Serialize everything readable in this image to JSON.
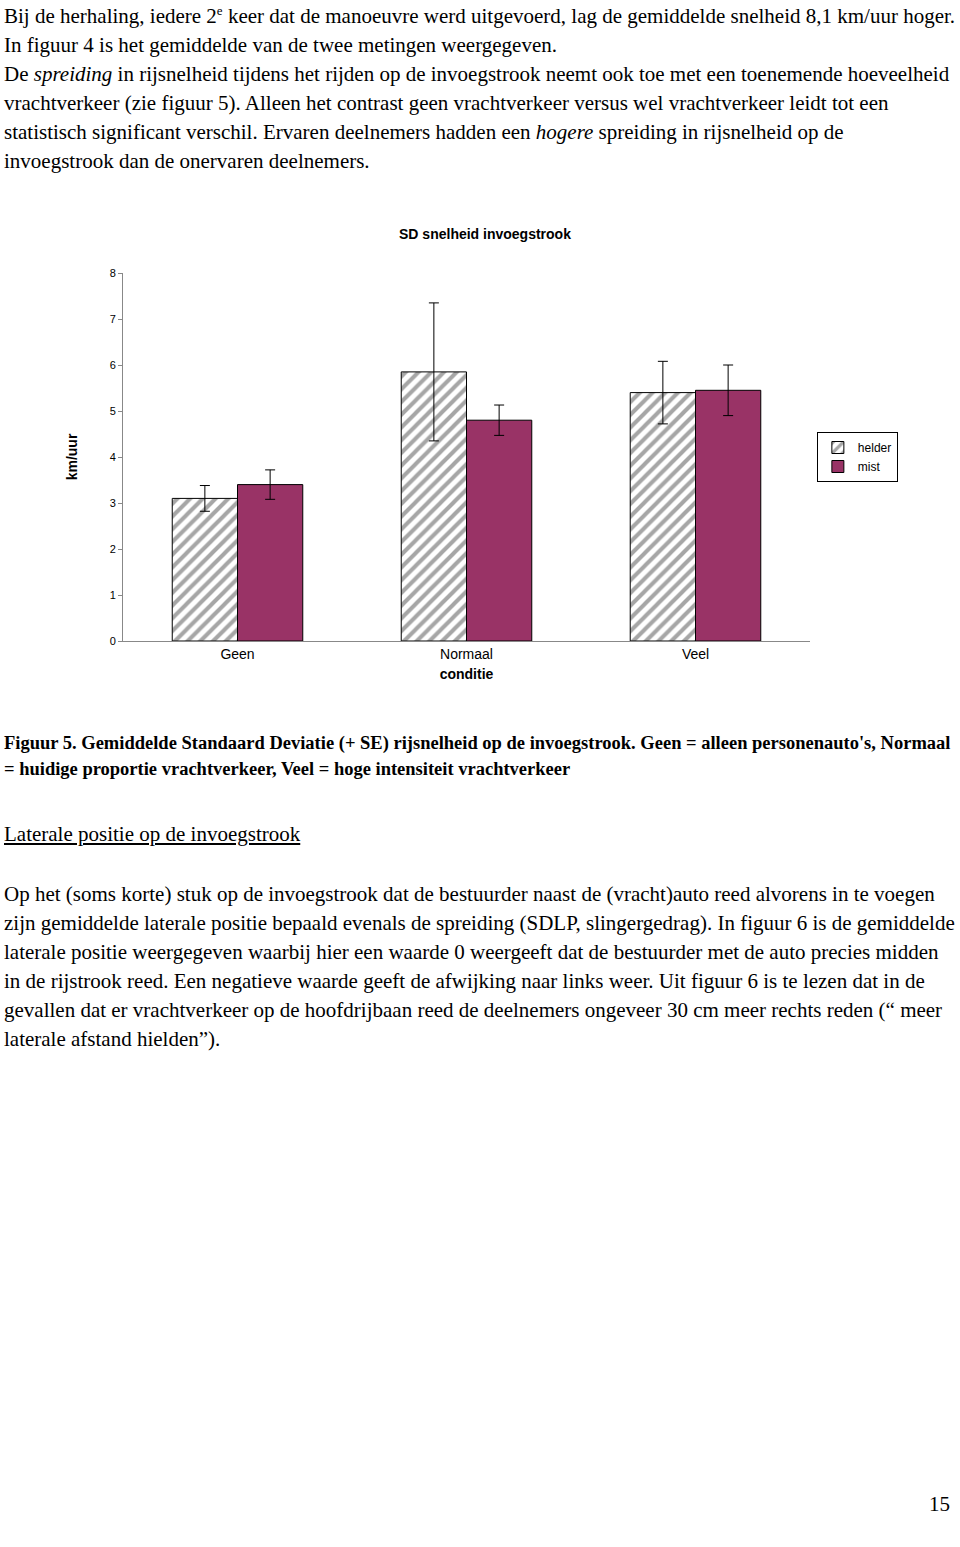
{
  "paragraphs": [
    [
      {
        "text": "Bij de herhaling, iedere 2"
      },
      {
        "text": "e",
        "sup": true
      },
      {
        "text": " keer dat de manoeuvre werd uitgevoerd, lag de gemiddelde snelheid 8,1 km/uur hoger. In figuur 4 is het gemiddelde van de twee metingen weergegeven."
      }
    ],
    [
      {
        "text": "De "
      },
      {
        "text": "spreiding",
        "italic": true
      },
      {
        "text": " in rijsnelheid tijdens het rijden op de invoegstrook neemt ook toe met een toenemende hoeveelheid vrachtverkeer (zie figuur 5). Alleen het contrast geen vrachtverkeer versus wel vrachtverkeer leidt tot een statistisch significant verschil. Ervaren deelnemers hadden een "
      },
      {
        "text": "hogere",
        "italic": true
      },
      {
        "text": " spreiding in rijsnelheid op de invoegstrook dan de onervaren deelnemers."
      }
    ]
  ],
  "chart_data": {
    "type": "bar",
    "title": "SD snelheid invoegstrook",
    "x_label": "conditie",
    "y_label": "km/uur",
    "categories": [
      "Geen",
      "Normaal",
      "Veel"
    ],
    "series": [
      {
        "name": "helder",
        "color": "#a6a6a6",
        "marker": "hatch",
        "values": [
          3.1,
          5.85,
          5.4
        ],
        "error": [
          0.28,
          1.5,
          0.68
        ]
      },
      {
        "name": "mist",
        "color": "#993366",
        "marker": "solid",
        "values": [
          3.4,
          4.8,
          5.45
        ],
        "error": [
          0.32,
          0.33,
          0.55
        ]
      }
    ],
    "ylim": [
      0,
      8
    ],
    "yticks": [
      0,
      1,
      2,
      3,
      4,
      5,
      6,
      7,
      8
    ],
    "grid": false,
    "legend": "right"
  },
  "caption": "Figuur 5. Gemiddelde Standaard Deviatie (+ SE)  rijsnelheid op de invoegstrook. Geen = alleen personenauto's, Normaal = huidige proportie vrachtverkeer, Veel = hoge intensiteit vrachtverkeer",
  "heading": "Laterale positie op de invoegstrook",
  "body": "Op het (soms korte) stuk op de invoegstrook dat de bestuurder naast de (vracht)auto reed alvorens in te voegen zijn gemiddelde laterale positie bepaald evenals de spreiding (SDLP, slingergedrag). In figuur 6 is de gemiddelde laterale positie weergegeven waarbij hier een waarde 0 weergeeft dat de bestuurder met de auto precies midden in de rijstrook reed. Een negatieve waarde geeft de afwijking naar links weer. Uit figuur 6 is te lezen dat in de gevallen dat er vrachtverkeer op de hoofdrijbaan reed de deelnemers ongeveer 30 cm meer rechts reden (“ meer laterale afstand hielden”).",
  "page_number": "15"
}
